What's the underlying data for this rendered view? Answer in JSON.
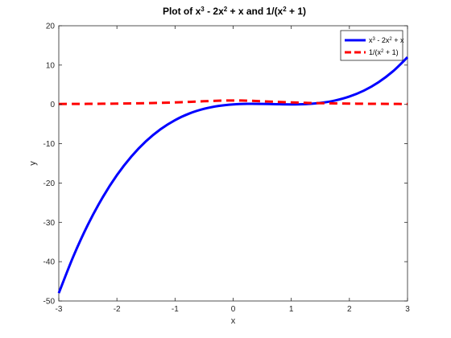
{
  "chart_data": {
    "type": "line",
    "title": {
      "parts": [
        {
          "t": "Plot of x"
        },
        {
          "t": "3",
          "sup": true
        },
        {
          "t": " - 2x"
        },
        {
          "t": "2",
          "sup": true
        },
        {
          "t": " + x and 1/(x"
        },
        {
          "t": "2",
          "sup": true
        },
        {
          "t": " + 1)"
        }
      ]
    },
    "xlabel": "x",
    "ylabel": "y",
    "xlim": [
      -3,
      3
    ],
    "ylim": [
      -50,
      20
    ],
    "xticks": [
      -3,
      -2,
      -1,
      0,
      1,
      2,
      3
    ],
    "yticks": [
      -50,
      -40,
      -30,
      -20,
      -10,
      0,
      10,
      20
    ],
    "x_tick_labels": [
      "-3",
      "-2",
      "-1",
      "0",
      "1",
      "2",
      "3"
    ],
    "y_tick_labels": [
      "-50",
      "-40",
      "-30",
      "-20",
      "-10",
      "0",
      "10",
      "20"
    ],
    "grid": false,
    "legend_position": "top-right",
    "series": [
      {
        "id": "cubic",
        "color": "#0000ff",
        "dash": "solid",
        "legend_parts": [
          {
            "t": "x"
          },
          {
            "t": "3",
            "sup": true
          },
          {
            "t": " - 2x"
          },
          {
            "t": "2",
            "sup": true
          },
          {
            "t": " + x"
          }
        ],
        "x": [
          -3,
          -2.75,
          -2.5,
          -2.25,
          -2,
          -1.75,
          -1.5,
          -1.25,
          -1,
          -0.75,
          -0.5,
          -0.25,
          0,
          0.25,
          0.5,
          0.75,
          1,
          1.25,
          1.5,
          1.75,
          2,
          2.25,
          2.5,
          2.75,
          3
        ],
        "y": [
          -48,
          -38.672,
          -30.625,
          -23.766,
          -18,
          -13.234,
          -9.375,
          -6.328,
          -4,
          -2.297,
          -1.125,
          -0.391,
          0,
          0.141,
          0.125,
          0.047,
          0,
          0.078,
          0.375,
          0.984,
          2,
          3.516,
          5.625,
          8.422,
          12
        ]
      },
      {
        "id": "rational",
        "color": "#ff0000",
        "dash": "dashed",
        "legend_parts": [
          {
            "t": "1/(x"
          },
          {
            "t": "2",
            "sup": true
          },
          {
            "t": " + 1)"
          }
        ],
        "x": [
          -3,
          -2.75,
          -2.5,
          -2.25,
          -2,
          -1.75,
          -1.5,
          -1.25,
          -1,
          -0.75,
          -0.5,
          -0.25,
          0,
          0.25,
          0.5,
          0.75,
          1,
          1.25,
          1.5,
          1.75,
          2,
          2.25,
          2.5,
          2.75,
          3
        ],
        "y": [
          0.1,
          0.117,
          0.138,
          0.165,
          0.2,
          0.246,
          0.308,
          0.39,
          0.5,
          0.64,
          0.8,
          0.941,
          1,
          0.941,
          0.8,
          0.64,
          0.5,
          0.39,
          0.308,
          0.246,
          0.2,
          0.165,
          0.138,
          0.117,
          0.1
        ]
      }
    ]
  }
}
